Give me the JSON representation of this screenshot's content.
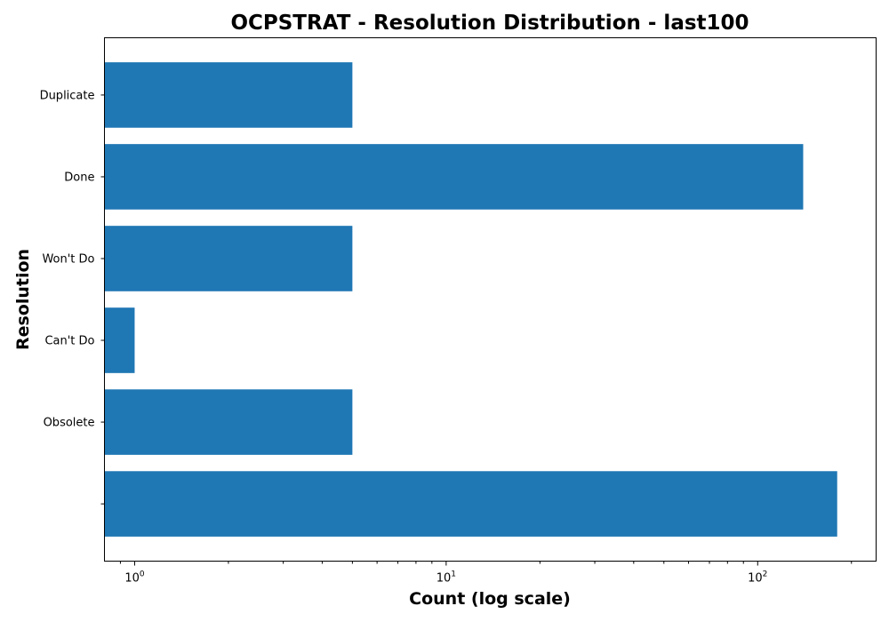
{
  "chart_data": {
    "type": "bar",
    "orientation": "horizontal",
    "title": "OCPSTRAT - Resolution Distribution - last100",
    "xlabel": "Count (log scale)",
    "ylabel": "Resolution",
    "x_scale": "log",
    "xlim": [
      0.8,
      240
    ],
    "x_ticks": [
      {
        "base": "10",
        "exp": "0",
        "value": 1
      },
      {
        "base": "10",
        "exp": "1",
        "value": 10
      },
      {
        "base": "10",
        "exp": "2",
        "value": 100
      }
    ],
    "categories": [
      "Duplicate",
      "Done",
      "Won't Do",
      "Can't Do",
      "Obsolete",
      ""
    ],
    "values": [
      5,
      140,
      5,
      1,
      5,
      180
    ],
    "bar_color": "#1f77b4",
    "grid": false,
    "legend": "none"
  }
}
